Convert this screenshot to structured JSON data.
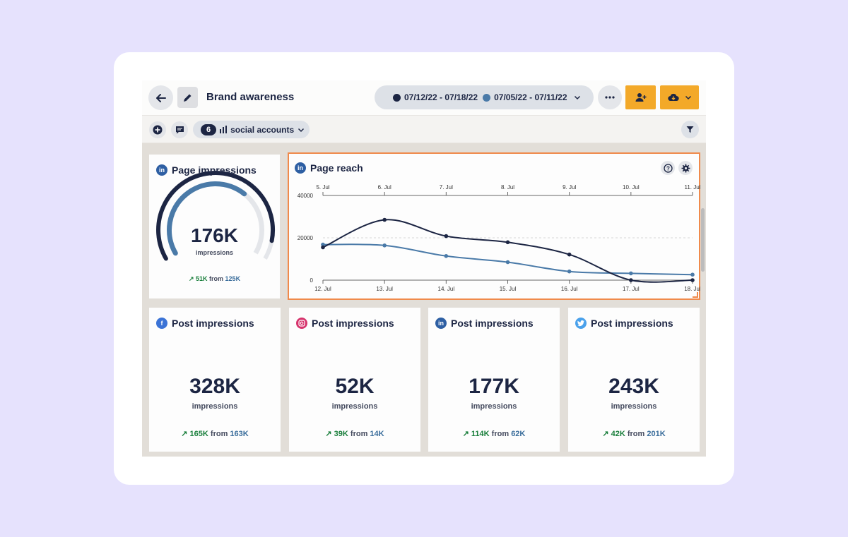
{
  "header": {
    "title": "Brand awareness",
    "date_current": "07/12/22 - 07/18/22",
    "date_previous": "07/05/22 - 07/11/22"
  },
  "toolbar": {
    "accounts_count": "6",
    "accounts_label": "social accounts"
  },
  "colors": {
    "current": "#1c2543",
    "previous": "#4a7aa8",
    "accent": "#f3a929",
    "linkedin": "#2e5fa3",
    "facebook": "#3b73d6",
    "instagram": "#d6336c",
    "twitter": "#4aa1eb",
    "highlight": "#f08a4b"
  },
  "page_impressions": {
    "title": "Page impressions",
    "network": "linkedin",
    "value": "176K",
    "unit": "impressions",
    "change": "51K",
    "from_label": "from",
    "previous": "125K",
    "gauge_current_fraction": 0.92,
    "gauge_previous_fraction": 0.66
  },
  "page_reach": {
    "title": "Page reach",
    "network": "linkedin"
  },
  "chart_data": {
    "type": "line",
    "x_current": [
      "12. Jul",
      "13. Jul",
      "14. Jul",
      "15. Jul",
      "16. Jul",
      "17. Jul",
      "18. Jul"
    ],
    "x_previous": [
      "5. Jul",
      "6. Jul",
      "7. Jul",
      "8. Jul",
      "9. Jul",
      "10. Jul",
      "11. Jul"
    ],
    "series": [
      {
        "values": [
          15500,
          28500,
          20800,
          17900,
          12100,
          0,
          0
        ]
      },
      {
        "values": [
          16800,
          16400,
          11400,
          8500,
          4100,
          3200,
          2600
        ]
      }
    ],
    "ylim": [
      0,
      40000
    ],
    "yticks": [
      "0",
      "20000",
      "40000"
    ],
    "grid": true
  },
  "post_cards": [
    {
      "title": "Post impressions",
      "network": "facebook",
      "value": "328K",
      "unit": "impressions",
      "change": "165K",
      "from_label": "from",
      "previous": "163K"
    },
    {
      "title": "Post impressions",
      "network": "instagram",
      "value": "52K",
      "unit": "impressions",
      "change": "39K",
      "from_label": "from",
      "previous": "14K"
    },
    {
      "title": "Post impressions",
      "network": "linkedin",
      "value": "177K",
      "unit": "impressions",
      "change": "114K",
      "from_label": "from",
      "previous": "62K"
    },
    {
      "title": "Post impressions",
      "network": "twitter",
      "value": "243K",
      "unit": "impressions",
      "change": "42K",
      "from_label": "from",
      "previous": "201K"
    }
  ],
  "icons": {
    "back": "arrow-left-icon",
    "edit": "pencil-icon",
    "more": "dots-icon",
    "share": "add-user-icon",
    "export": "cloud-download-icon",
    "add": "plus-icon",
    "comment": "comment-icon",
    "bar": "bar-chart-icon",
    "filter": "filter-icon",
    "help": "help-icon",
    "settings": "gear-icon"
  }
}
